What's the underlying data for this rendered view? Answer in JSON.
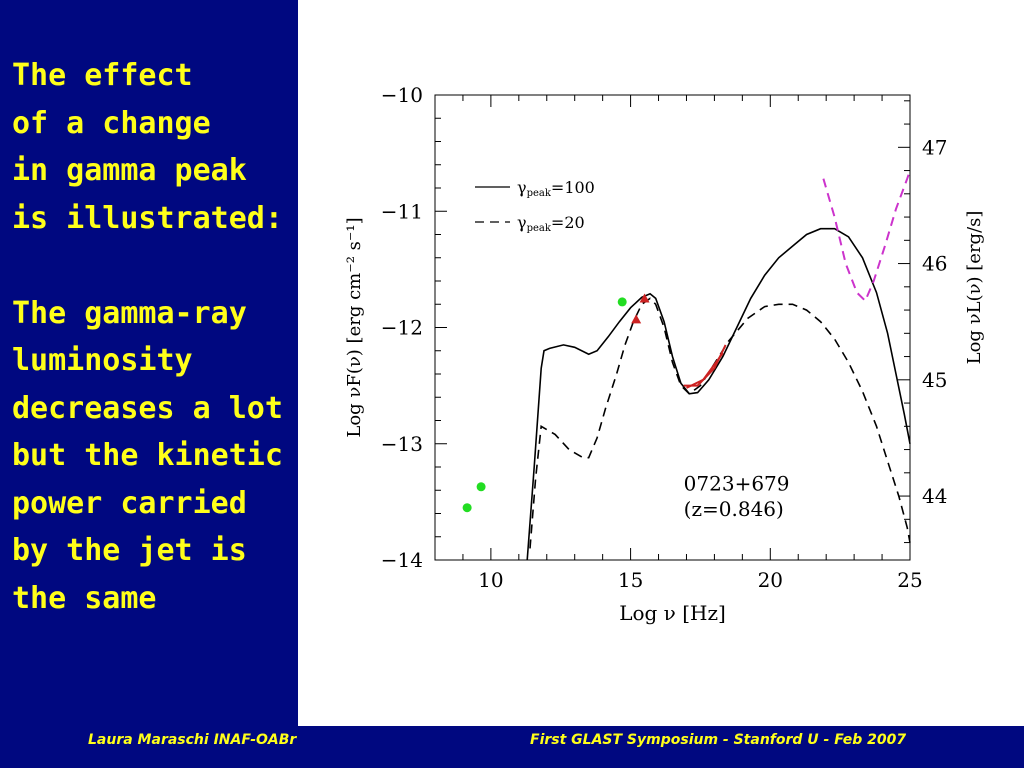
{
  "slide": {
    "body_lines": [
      "The effect",
      "of a change",
      "in gamma peak",
      "is illustrated:",
      "",
      "The gamma-ray",
      "luminosity",
      "decreases a lot",
      "but the kinetic",
      "power carried",
      "by the jet is",
      "the same"
    ]
  },
  "footer": {
    "left": "Laura Maraschi INAF-OABr",
    "right": "First GLAST Symposium - Stanford U - Feb 2007"
  },
  "colors": {
    "background": "#000880",
    "text": "#ffff1a",
    "magenta": "#cc33cc",
    "green": "#22dd22",
    "red": "#cc2222"
  },
  "chart_data": {
    "type": "line",
    "xlabel": "Log ν [Hz]",
    "ylabel": "Log νF(ν) [erg cm⁻² s⁻¹]",
    "y2label": "Log νL(ν) [erg/s]",
    "xlim": [
      8,
      25
    ],
    "ylim": [
      -14,
      -10
    ],
    "xticks": [
      10,
      15,
      20,
      25
    ],
    "yticks": [
      -14,
      -13,
      -12,
      -11,
      -10
    ],
    "y2ticks": [
      44,
      45,
      46,
      47
    ],
    "y2_offset": 57.45,
    "annotation": [
      "0723+679",
      "(z=0.846)"
    ],
    "legend": [
      {
        "symbol": "γ",
        "subscript": "peak",
        "text": "=100",
        "style": "solid"
      },
      {
        "symbol": "γ",
        "subscript": "peak",
        "text": "=20",
        "style": "dashed"
      }
    ],
    "series": [
      {
        "name": "γpeak=100",
        "style": "solid",
        "color": "#000000",
        "points": [
          [
            11.3,
            -14.0
          ],
          [
            11.55,
            -13.2
          ],
          [
            11.8,
            -12.35
          ],
          [
            11.9,
            -12.2
          ],
          [
            12.1,
            -12.18
          ],
          [
            12.6,
            -12.15
          ],
          [
            13.0,
            -12.17
          ],
          [
            13.5,
            -12.23
          ],
          [
            13.8,
            -12.2
          ],
          [
            14.2,
            -12.08
          ],
          [
            14.6,
            -11.95
          ],
          [
            15.0,
            -11.83
          ],
          [
            15.4,
            -11.74
          ],
          [
            15.7,
            -11.71
          ],
          [
            15.9,
            -11.75
          ],
          [
            16.2,
            -11.95
          ],
          [
            16.5,
            -12.25
          ],
          [
            16.8,
            -12.48
          ],
          [
            17.1,
            -12.57
          ],
          [
            17.4,
            -12.56
          ],
          [
            17.8,
            -12.45
          ],
          [
            18.3,
            -12.25
          ],
          [
            18.8,
            -12.0
          ],
          [
            19.3,
            -11.75
          ],
          [
            19.8,
            -11.55
          ],
          [
            20.3,
            -11.4
          ],
          [
            20.8,
            -11.3
          ],
          [
            21.3,
            -11.2
          ],
          [
            21.8,
            -11.15
          ],
          [
            22.3,
            -11.15
          ],
          [
            22.8,
            -11.22
          ],
          [
            23.3,
            -11.4
          ],
          [
            23.8,
            -11.7
          ],
          [
            24.2,
            -12.05
          ],
          [
            24.5,
            -12.4
          ],
          [
            24.8,
            -12.75
          ],
          [
            25.0,
            -13.0
          ]
        ]
      },
      {
        "name": "γpeak=20",
        "style": "dashed",
        "color": "#000000",
        "points": [
          [
            11.4,
            -13.9
          ],
          [
            11.6,
            -13.3
          ],
          [
            11.8,
            -12.85
          ],
          [
            12.3,
            -12.92
          ],
          [
            12.8,
            -13.05
          ],
          [
            13.3,
            -13.12
          ],
          [
            13.5,
            -13.12
          ],
          [
            13.8,
            -12.95
          ],
          [
            14.1,
            -12.7
          ],
          [
            14.5,
            -12.4
          ],
          [
            14.8,
            -12.15
          ],
          [
            15.1,
            -11.95
          ],
          [
            15.4,
            -11.8
          ],
          [
            15.7,
            -11.75
          ],
          [
            15.9,
            -11.8
          ],
          [
            16.2,
            -12.0
          ],
          [
            16.5,
            -12.3
          ],
          [
            16.8,
            -12.5
          ],
          [
            17.1,
            -12.57
          ],
          [
            17.5,
            -12.5
          ],
          [
            17.9,
            -12.35
          ],
          [
            18.5,
            -12.12
          ],
          [
            19.2,
            -11.92
          ],
          [
            19.8,
            -11.82
          ],
          [
            20.3,
            -11.8
          ],
          [
            20.8,
            -11.8
          ],
          [
            21.3,
            -11.85
          ],
          [
            21.8,
            -11.95
          ],
          [
            22.3,
            -12.1
          ],
          [
            22.8,
            -12.3
          ],
          [
            23.3,
            -12.55
          ],
          [
            23.8,
            -12.85
          ],
          [
            24.2,
            -13.15
          ],
          [
            24.6,
            -13.45
          ],
          [
            24.9,
            -13.72
          ],
          [
            25.0,
            -13.85
          ]
        ]
      },
      {
        "name": "",
        "style": "dashed",
        "color": "#cc33cc",
        "points": [
          [
            21.9,
            -10.72
          ],
          [
            22.3,
            -11.05
          ],
          [
            22.7,
            -11.45
          ],
          [
            23.1,
            -11.7
          ],
          [
            23.4,
            -11.77
          ],
          [
            23.7,
            -11.6
          ],
          [
            24.1,
            -11.3
          ],
          [
            24.5,
            -10.98
          ],
          [
            24.9,
            -10.72
          ],
          [
            25.0,
            -10.65
          ]
        ]
      },
      {
        "name": "",
        "style": "solid",
        "color": "#cc2222",
        "points": [
          [
            16.9,
            -12.5
          ],
          [
            17.4,
            -12.5
          ],
          [
            18.0,
            -12.35
          ],
          [
            18.4,
            -12.15
          ]
        ]
      },
      {
        "name": "",
        "style": "solid",
        "color": "#cc2222",
        "points": [
          [
            17.0,
            -12.52
          ],
          [
            17.6,
            -12.45
          ],
          [
            18.3,
            -12.22
          ]
        ]
      }
    ],
    "points": [
      {
        "x": 9.15,
        "y": -13.55,
        "color": "#22dd22",
        "marker": "circle"
      },
      {
        "x": 9.65,
        "y": -13.37,
        "color": "#22dd22",
        "marker": "circle"
      },
      {
        "x": 14.7,
        "y": -11.78,
        "color": "#22dd22",
        "marker": "circle"
      },
      {
        "x": 15.2,
        "y": -11.93,
        "color": "#cc2222",
        "marker": "triangle"
      },
      {
        "x": 15.5,
        "y": -11.75,
        "color": "#cc2222",
        "marker": "triangle"
      }
    ]
  }
}
